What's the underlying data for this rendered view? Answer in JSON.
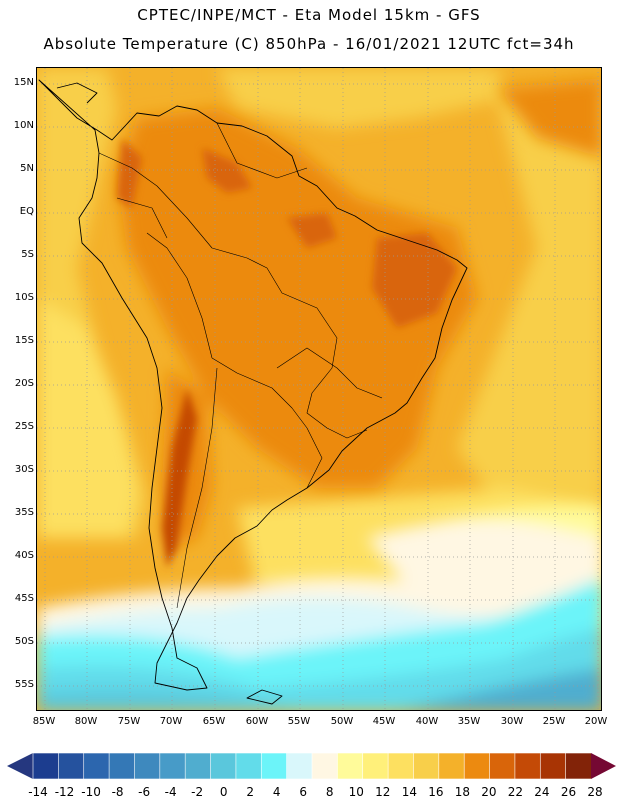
{
  "header": {
    "title_line1": "CPTEC/INPE/MCT -  Eta Model 15km - GFS",
    "title_line2": "Absolute Temperature (C) 850hPa - 16/01/2021 12UTC fct=34h"
  },
  "map": {
    "lat_labels": [
      "15N",
      "10N",
      "5N",
      "EQ",
      "5S",
      "10S",
      "15S",
      "20S",
      "25S",
      "30S",
      "35S",
      "40S",
      "45S",
      "50S",
      "55S"
    ],
    "lon_labels": [
      "85W",
      "80W",
      "75W",
      "70W",
      "65W",
      "60W",
      "55W",
      "50W",
      "45W",
      "40W",
      "35W",
      "30W",
      "25W",
      "20W"
    ]
  },
  "colorbar": {
    "labels": [
      "-14",
      "-12",
      "-10",
      "-8",
      "-6",
      "-4",
      "-2",
      "0",
      "2",
      "4",
      "6",
      "8",
      "10",
      "12",
      "14",
      "16",
      "18",
      "20",
      "22",
      "24",
      "26",
      "28"
    ],
    "colors": [
      "#1c3d8f",
      "#25529e",
      "#2c66ae",
      "#3478b6",
      "#3e89be",
      "#479bc8",
      "#50adcf",
      "#5ac7dc",
      "#62dcea",
      "#6cf4f9",
      "#d9f7fb",
      "#fff7e3",
      "#fffb9a",
      "#fff07a",
      "#fde060",
      "#f8cf4a",
      "#f4b12a",
      "#ec8a10",
      "#d9650a",
      "#c44a06",
      "#a83404",
      "#822308"
    ],
    "left_cap": "#25377f",
    "right_cap": "#750833"
  }
}
